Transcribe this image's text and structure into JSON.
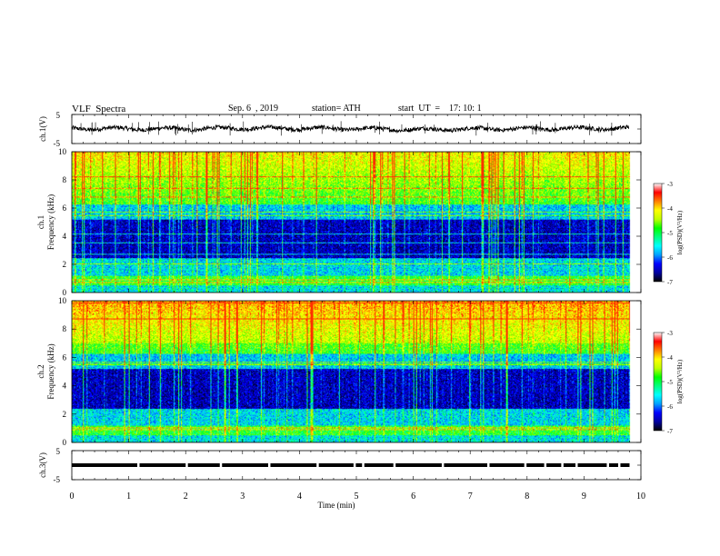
{
  "header": {
    "title": "VLF  Spectra",
    "date": "Sep. 6  , 2019",
    "station": "station= ATH",
    "start_ut": "start  UT  =    17: 10: 1"
  },
  "colors": {
    "colormap": [
      "#000040",
      "#0000a0",
      "#0000ff",
      "#0060ff",
      "#00c0ff",
      "#00ffc0",
      "#00ff40",
      "#60ff00",
      "#c0ff00",
      "#ffff00",
      "#ffa000",
      "#ff3000",
      "#d00000",
      "#ffffff"
    ],
    "trace": "#000000"
  },
  "chart_data": [
    {
      "type": "line",
      "panel": "ch1-waveform",
      "ylabel": "ch.1(V)",
      "ylim": [
        -5,
        5
      ],
      "yticks": [
        "5",
        "-5"
      ],
      "xlim": [
        0,
        10
      ],
      "series": [
        {
          "x": [
            0,
            1,
            2,
            3,
            4,
            5,
            6,
            7,
            8,
            9,
            9.8
          ],
          "y": [
            0.2,
            0.1,
            0.0,
            0.3,
            0.2,
            0.1,
            -0.2,
            0.0,
            0.1,
            0.2,
            0.3
          ]
        }
      ]
    },
    {
      "type": "heatmap",
      "panel": "ch1-spectrogram",
      "ylabel": "ch.1\nFrequency  (kHz)",
      "ylim": [
        0,
        10
      ],
      "yticks": [
        "0",
        "2",
        "4",
        "6",
        "8",
        "10"
      ],
      "xlim": [
        0,
        10
      ],
      "data_xmax": 9.8,
      "colorbar": {
        "label": "log(PSD)(V²/Hz)",
        "range": [
          -7,
          -3
        ],
        "ticks": [
          "-3",
          "-4",
          "-5",
          "-6",
          "-7"
        ]
      }
    },
    {
      "type": "heatmap",
      "panel": "ch2-spectrogram",
      "ylabel": "ch.2\nFrequency  (kHz)",
      "ylim": [
        0,
        10
      ],
      "yticks": [
        "0",
        "2",
        "4",
        "6",
        "8",
        "10"
      ],
      "xlim": [
        0,
        10
      ],
      "data_xmax": 9.8,
      "colorbar": {
        "label": "log(PSD)(V²/Hz)",
        "range": [
          -7,
          -3
        ],
        "ticks": [
          "-3",
          "-4",
          "-5",
          "-6",
          "-7"
        ]
      }
    },
    {
      "type": "line",
      "panel": "ch3-waveform",
      "ylabel": "ch.3(V)",
      "ylim": [
        -5,
        5
      ],
      "yticks": [
        "5",
        "-5"
      ],
      "xlim": [
        0,
        10
      ],
      "xlabel": "Time  (min)",
      "xticks": [
        "0",
        "1",
        "2",
        "3",
        "4",
        "5",
        "6",
        "7",
        "8",
        "9",
        "10"
      ],
      "series": [
        {
          "x": [
            0,
            9.8
          ],
          "y": [
            0,
            0
          ]
        }
      ]
    }
  ]
}
